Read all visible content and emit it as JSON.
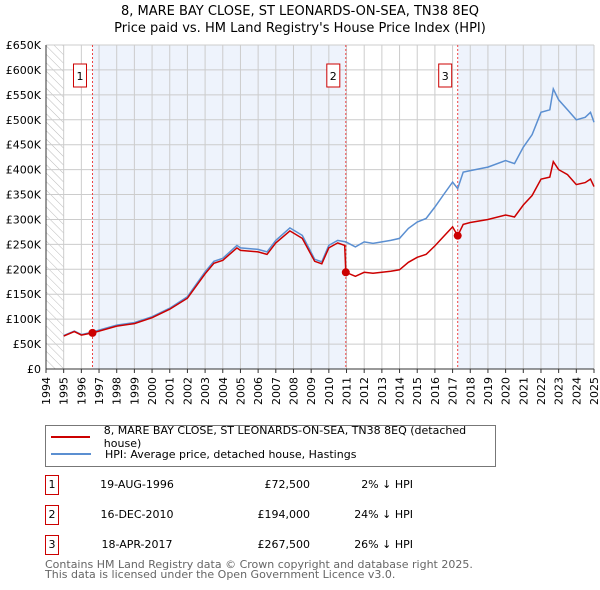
{
  "title_line1": "8, MARE BAY CLOSE, ST LEONARDS-ON-SEA, TN38 8EQ",
  "title_line2": "Price paid vs. HM Land Registry's House Price Index (HPI)",
  "colors": {
    "property": "#cc0000",
    "hpi": "#5b8fd1",
    "shade": "#eef3fc"
  },
  "chart_data": {
    "type": "line",
    "xlim": [
      1994,
      2025
    ],
    "ylim": [
      0,
      650000
    ],
    "x_ticks": [
      "1994",
      "1995",
      "1996",
      "1997",
      "1998",
      "1999",
      "2000",
      "2001",
      "2002",
      "2003",
      "2004",
      "2005",
      "2006",
      "2007",
      "2008",
      "2009",
      "2010",
      "2011",
      "2012",
      "2013",
      "2014",
      "2015",
      "2016",
      "2017",
      "2018",
      "2019",
      "2020",
      "2021",
      "2022",
      "2023",
      "2024",
      "2025"
    ],
    "y_ticks": [
      {
        "v": 0,
        "label": "£0"
      },
      {
        "v": 50000,
        "label": "£50K"
      },
      {
        "v": 100000,
        "label": "£100K"
      },
      {
        "v": 150000,
        "label": "£150K"
      },
      {
        "v": 200000,
        "label": "£200K"
      },
      {
        "v": 250000,
        "label": "£250K"
      },
      {
        "v": 300000,
        "label": "£300K"
      },
      {
        "v": 350000,
        "label": "£350K"
      },
      {
        "v": 400000,
        "label": "£400K"
      },
      {
        "v": 450000,
        "label": "£450K"
      },
      {
        "v": 500000,
        "label": "£500K"
      },
      {
        "v": 550000,
        "label": "£550K"
      },
      {
        "v": 600000,
        "label": "£600K"
      },
      {
        "v": 650000,
        "label": "£650K"
      }
    ],
    "series": [
      {
        "name": "8, MARE BAY CLOSE, ST LEONARDS-ON-SEA, TN38 8EQ (detached house)",
        "color": "#cc0000",
        "x": [
          1995,
          1995.6,
          1996,
          1996.63,
          1997,
          1998,
          1999,
          2000,
          2001,
          2002,
          2003,
          2003.5,
          2004,
          2004.8,
          2005,
          2006,
          2006.5,
          2007,
          2007.8,
          2008.5,
          2009.2,
          2009.6,
          2010,
          2010.5,
          2010.9,
          2010.96,
          2011.5,
          2012,
          2012.5,
          2013,
          2013.5,
          2014,
          2014.5,
          2015,
          2015.5,
          2016,
          2016.5,
          2017,
          2017.29,
          2017.6,
          2018,
          2019,
          2020,
          2020.5,
          2021,
          2021.5,
          2022,
          2022.5,
          2022.7,
          2023,
          2023.5,
          2024,
          2024.5,
          2024.8,
          2025
        ],
        "y": [
          66000,
          75000,
          68000,
          72500,
          76000,
          86000,
          91000,
          103000,
          120000,
          142000,
          191000,
          212000,
          218000,
          243000,
          238000,
          235000,
          230000,
          253000,
          277000,
          262000,
          216000,
          211000,
          243000,
          253000,
          248000,
          194000,
          186000,
          194000,
          192000,
          194000,
          196000,
          199000,
          214000,
          224000,
          230000,
          247000,
          266000,
          285000,
          267500,
          290000,
          294000,
          300000,
          309000,
          305000,
          329000,
          348000,
          381000,
          385000,
          416000,
          400000,
          390000,
          370000,
          374000,
          381000,
          366000
        ]
      },
      {
        "name": "HPI: Average price, detached house, Hastings",
        "color": "#5b8fd1",
        "x": [
          1995,
          1995.6,
          1996,
          1996.63,
          1997,
          1998,
          1999,
          2000,
          2001,
          2002,
          2003,
          2003.5,
          2004,
          2004.8,
          2005,
          2006,
          2006.5,
          2007,
          2007.8,
          2008.5,
          2009.2,
          2009.6,
          2010,
          2010.5,
          2010.96,
          2011.5,
          2012,
          2012.5,
          2013,
          2013.5,
          2014,
          2014.5,
          2015,
          2015.5,
          2016,
          2016.5,
          2017,
          2017.29,
          2017.6,
          2018,
          2019,
          2020,
          2020.5,
          2021,
          2021.5,
          2022,
          2022.5,
          2022.7,
          2023,
          2023.5,
          2024,
          2024.5,
          2024.8,
          2025
        ],
        "y": [
          67000,
          76000,
          69000,
          74000,
          78000,
          88000,
          93000,
          105000,
          122000,
          145000,
          195000,
          216000,
          222000,
          248000,
          243000,
          240000,
          235000,
          258000,
          283000,
          268000,
          220000,
          215000,
          248000,
          258000,
          255000,
          245000,
          255000,
          252000,
          255000,
          258000,
          262000,
          282000,
          295000,
          302000,
          325000,
          350000,
          375000,
          362000,
          395000,
          398000,
          405000,
          418000,
          412000,
          445000,
          470000,
          515000,
          520000,
          562000,
          540000,
          520000,
          500000,
          505000,
          515000,
          495000
        ]
      }
    ],
    "legend": "below",
    "annotations": [
      {
        "label": "1",
        "x": 1996.63,
        "y": 72500
      },
      {
        "label": "2",
        "x": 2010.96,
        "y": 194000
      },
      {
        "label": "3",
        "x": 2017.29,
        "y": 267500
      }
    ]
  },
  "legend": {
    "property": "8, MARE BAY CLOSE, ST LEONARDS-ON-SEA, TN38 8EQ (detached house)",
    "hpi": "HPI: Average price, detached house, Hastings"
  },
  "sales": [
    {
      "num": "1",
      "date": "19-AUG-1996",
      "price": "£72,500",
      "hpi": "2% ↓ HPI"
    },
    {
      "num": "2",
      "date": "16-DEC-2010",
      "price": "£194,000",
      "hpi": "24% ↓ HPI"
    },
    {
      "num": "3",
      "date": "18-APR-2017",
      "price": "£267,500",
      "hpi": "26% ↓ HPI"
    }
  ],
  "footer_line1": "Contains HM Land Registry data © Crown copyright and database right 2025.",
  "footer_line2": "This data is licensed under the Open Government Licence v3.0."
}
